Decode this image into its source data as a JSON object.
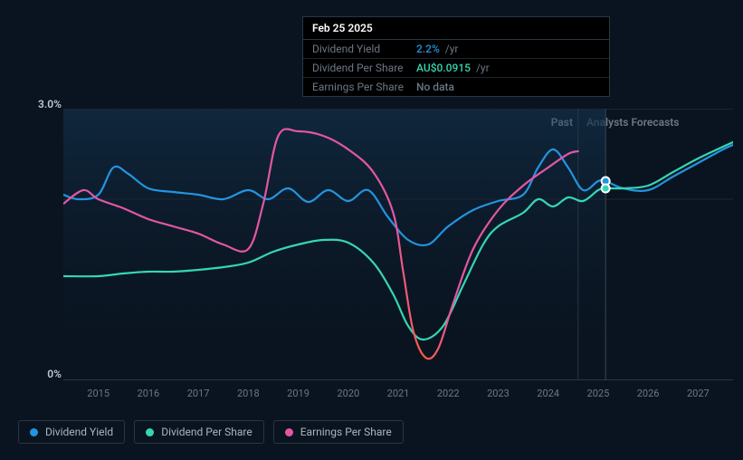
{
  "tooltip": {
    "date": "Feb 25 2025",
    "rows": [
      {
        "label": "Dividend Yield",
        "value": "2.2%",
        "unit": "/yr",
        "color": "#2394df"
      },
      {
        "label": "Dividend Per Share",
        "value": "AU$0.0915",
        "unit": "/yr",
        "color": "#35d6b4"
      },
      {
        "label": "Earnings Per Share",
        "value": "No data",
        "unit": "",
        "color": "#6b7886"
      }
    ]
  },
  "chart": {
    "y_top_label": "3.0%",
    "y_bottom_label": "0%",
    "ylim": [
      0,
      3.0
    ],
    "background_color": "#0a1420",
    "grid_color": "#1a2632",
    "baseline_color": "#2a3642",
    "past_label": "Past",
    "forecast_label": "Analysts Forecasts",
    "x_years": [
      2015,
      2016,
      2017,
      2018,
      2019,
      2020,
      2021,
      2022,
      2023,
      2024,
      2025,
      2026,
      2027
    ],
    "x_range": [
      2014.3,
      2027.7
    ],
    "divider_x": 2024.6,
    "hover_x": 2025.15,
    "shade_color_top": "#0e2336",
    "shade_color_bottom": "#0a1420",
    "series": [
      {
        "name": "Dividend Yield",
        "color": "#2394df",
        "points": [
          [
            2014.3,
            2.05
          ],
          [
            2014.6,
            2.0
          ],
          [
            2015.0,
            2.05
          ],
          [
            2015.3,
            2.35
          ],
          [
            2015.6,
            2.28
          ],
          [
            2016.0,
            2.12
          ],
          [
            2016.5,
            2.08
          ],
          [
            2017.0,
            2.05
          ],
          [
            2017.5,
            2.0
          ],
          [
            2018.0,
            2.1
          ],
          [
            2018.4,
            2.0
          ],
          [
            2018.8,
            2.12
          ],
          [
            2019.2,
            1.97
          ],
          [
            2019.6,
            2.1
          ],
          [
            2020.0,
            1.98
          ],
          [
            2020.4,
            2.1
          ],
          [
            2020.8,
            1.8
          ],
          [
            2021.2,
            1.55
          ],
          [
            2021.6,
            1.5
          ],
          [
            2022.0,
            1.7
          ],
          [
            2022.5,
            1.88
          ],
          [
            2023.0,
            1.98
          ],
          [
            2023.5,
            2.05
          ],
          [
            2023.8,
            2.35
          ],
          [
            2024.1,
            2.55
          ],
          [
            2024.4,
            2.35
          ],
          [
            2024.7,
            2.1
          ],
          [
            2025.0,
            2.2
          ],
          [
            2025.15,
            2.2
          ],
          [
            2025.5,
            2.12
          ],
          [
            2026.0,
            2.1
          ],
          [
            2026.5,
            2.25
          ],
          [
            2027.0,
            2.4
          ],
          [
            2027.5,
            2.55
          ],
          [
            2027.7,
            2.6
          ]
        ],
        "hover_dot": [
          2025.15,
          2.2
        ]
      },
      {
        "name": "Dividend Per Share",
        "color": "#35d6b4",
        "points": [
          [
            2014.3,
            1.15
          ],
          [
            2015.0,
            1.15
          ],
          [
            2015.5,
            1.18
          ],
          [
            2016.0,
            1.2
          ],
          [
            2016.5,
            1.2
          ],
          [
            2017.0,
            1.22
          ],
          [
            2017.5,
            1.25
          ],
          [
            2018.0,
            1.3
          ],
          [
            2018.5,
            1.42
          ],
          [
            2019.0,
            1.5
          ],
          [
            2019.5,
            1.55
          ],
          [
            2020.0,
            1.52
          ],
          [
            2020.5,
            1.3
          ],
          [
            2020.9,
            0.95
          ],
          [
            2021.2,
            0.6
          ],
          [
            2021.5,
            0.45
          ],
          [
            2021.9,
            0.6
          ],
          [
            2022.3,
            1.05
          ],
          [
            2022.7,
            1.5
          ],
          [
            2023.0,
            1.7
          ],
          [
            2023.5,
            1.85
          ],
          [
            2023.8,
            2.0
          ],
          [
            2024.1,
            1.92
          ],
          [
            2024.4,
            2.02
          ],
          [
            2024.7,
            1.98
          ],
          [
            2025.0,
            2.1
          ],
          [
            2025.15,
            2.12
          ],
          [
            2025.5,
            2.12
          ],
          [
            2026.0,
            2.15
          ],
          [
            2026.5,
            2.3
          ],
          [
            2027.0,
            2.45
          ],
          [
            2027.5,
            2.58
          ],
          [
            2027.7,
            2.63
          ]
        ],
        "hover_dot": [
          2025.15,
          2.12
        ]
      },
      {
        "name": "Earnings Per Share",
        "color": "#e356a4",
        "points": [
          [
            2014.3,
            1.95
          ],
          [
            2014.7,
            2.1
          ],
          [
            2015.0,
            2.0
          ],
          [
            2015.5,
            1.9
          ],
          [
            2016.0,
            1.78
          ],
          [
            2016.5,
            1.7
          ],
          [
            2017.0,
            1.62
          ],
          [
            2017.5,
            1.5
          ],
          [
            2018.0,
            1.45
          ],
          [
            2018.3,
            1.95
          ],
          [
            2018.6,
            2.7
          ],
          [
            2019.0,
            2.75
          ],
          [
            2019.5,
            2.7
          ],
          [
            2020.0,
            2.55
          ],
          [
            2020.5,
            2.3
          ],
          [
            2020.9,
            1.85
          ],
          [
            2021.1,
            1.2
          ],
          [
            2021.3,
            0.55
          ],
          [
            2021.55,
            0.25
          ],
          [
            2021.8,
            0.35
          ],
          [
            2022.1,
            0.85
          ],
          [
            2022.5,
            1.45
          ],
          [
            2023.0,
            1.88
          ],
          [
            2023.5,
            2.15
          ],
          [
            2024.0,
            2.35
          ],
          [
            2024.4,
            2.5
          ],
          [
            2024.6,
            2.53
          ]
        ],
        "dip_gradient": {
          "from": "#e356a4",
          "to": "#ff5a3c",
          "x_start": 2020.9,
          "x_end": 2022.1
        }
      }
    ]
  },
  "legend": [
    {
      "label": "Dividend Yield",
      "color": "#2394df"
    },
    {
      "label": "Dividend Per Share",
      "color": "#35d6b4"
    },
    {
      "label": "Earnings Per Share",
      "color": "#e356a4"
    }
  ]
}
